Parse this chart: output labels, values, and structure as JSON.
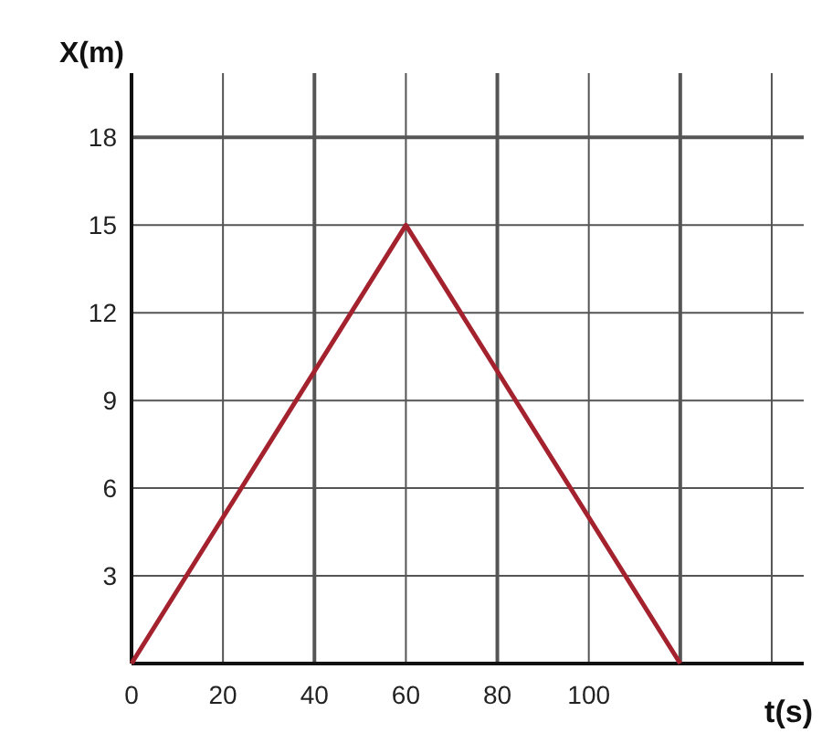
{
  "chart_data": {
    "type": "line",
    "xlabel": "t(s)",
    "ylabel": "X(m)",
    "x": [
      0,
      60,
      120
    ],
    "series": [
      {
        "color": "#a3222e",
        "values": [
          0,
          15,
          0
        ]
      }
    ],
    "xlim": [
      0,
      147
    ],
    "ylim": [
      0,
      20.2
    ],
    "xticks": [
      0,
      20,
      40,
      60,
      80,
      100,
      {
        "value": 120,
        "label": null
      },
      {
        "value": 140,
        "label": null
      }
    ],
    "yticks": [
      {
        "value": 0,
        "label": null
      },
      3,
      6,
      9,
      12,
      15,
      18
    ],
    "grid": true,
    "marker": "none",
    "line_style": "solid"
  }
}
